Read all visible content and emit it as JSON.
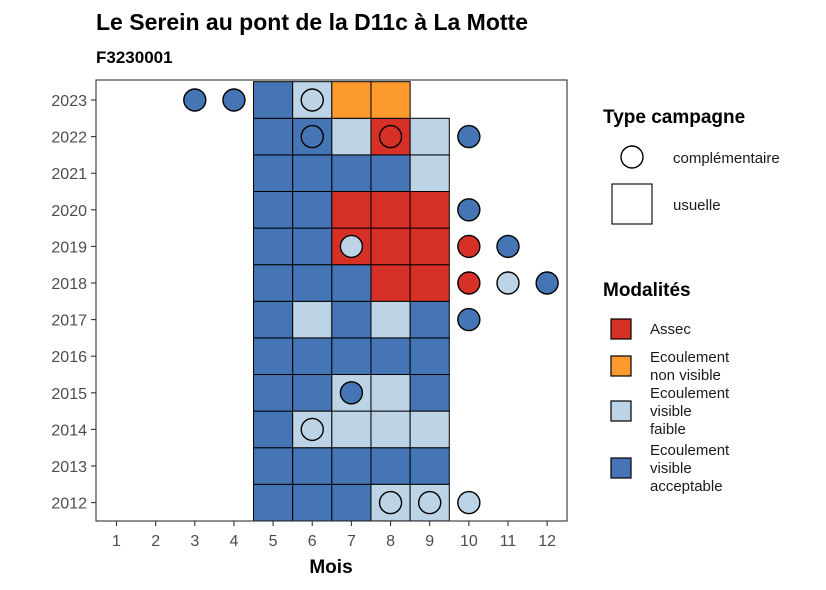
{
  "chart_data": {
    "type": "heatmap",
    "title": "Le Serein au pont de la D11c à La Motte",
    "subtitle": "F3230001",
    "xlabel": "Mois",
    "ylabel": "",
    "x_ticks": [
      1,
      2,
      3,
      4,
      5,
      6,
      7,
      8,
      9,
      10,
      11,
      12
    ],
    "y_ticks": [
      2012,
      2013,
      2014,
      2015,
      2016,
      2017,
      2018,
      2019,
      2020,
      2021,
      2022,
      2023
    ],
    "colors": {
      "Assec": "#d73027",
      "Ecoulement non visible": "#fd9a2e",
      "Ecoulement visible faible": "#bcd4e6",
      "Ecoulement visible acceptable": "#4575b4"
    },
    "legend_shape": {
      "title": "Type campagne",
      "items": [
        {
          "label": "complémentaire",
          "shape": "circle"
        },
        {
          "label": "usuelle",
          "shape": "square"
        }
      ]
    },
    "legend_fill": {
      "title": "Modalités",
      "items": [
        {
          "key": "Assec",
          "lines": [
            "Assec"
          ]
        },
        {
          "key": "Ecoulement non visible",
          "lines": [
            "Ecoulement",
            "non visible"
          ]
        },
        {
          "key": "Ecoulement visible faible",
          "lines": [
            "Ecoulement",
            "visible",
            "faible"
          ]
        },
        {
          "key": "Ecoulement visible acceptable",
          "lines": [
            "Ecoulement",
            "visible",
            "acceptable"
          ]
        }
      ]
    },
    "usuelle": [
      {
        "year": 2012,
        "month": 5,
        "modalite": "Ecoulement visible acceptable"
      },
      {
        "year": 2012,
        "month": 6,
        "modalite": "Ecoulement visible acceptable"
      },
      {
        "year": 2012,
        "month": 7,
        "modalite": "Ecoulement visible acceptable"
      },
      {
        "year": 2012,
        "month": 8,
        "modalite": "Ecoulement visible faible"
      },
      {
        "year": 2012,
        "month": 9,
        "modalite": "Ecoulement visible faible"
      },
      {
        "year": 2013,
        "month": 5,
        "modalite": "Ecoulement visible acceptable"
      },
      {
        "year": 2013,
        "month": 6,
        "modalite": "Ecoulement visible acceptable"
      },
      {
        "year": 2013,
        "month": 7,
        "modalite": "Ecoulement visible acceptable"
      },
      {
        "year": 2013,
        "month": 8,
        "modalite": "Ecoulement visible acceptable"
      },
      {
        "year": 2013,
        "month": 9,
        "modalite": "Ecoulement visible acceptable"
      },
      {
        "year": 2014,
        "month": 5,
        "modalite": "Ecoulement visible acceptable"
      },
      {
        "year": 2014,
        "month": 6,
        "modalite": "Ecoulement visible faible"
      },
      {
        "year": 2014,
        "month": 7,
        "modalite": "Ecoulement visible faible"
      },
      {
        "year": 2014,
        "month": 8,
        "modalite": "Ecoulement visible faible"
      },
      {
        "year": 2014,
        "month": 9,
        "modalite": "Ecoulement visible faible"
      },
      {
        "year": 2015,
        "month": 5,
        "modalite": "Ecoulement visible acceptable"
      },
      {
        "year": 2015,
        "month": 6,
        "modalite": "Ecoulement visible acceptable"
      },
      {
        "year": 2015,
        "month": 7,
        "modalite": "Ecoulement visible faible"
      },
      {
        "year": 2015,
        "month": 8,
        "modalite": "Ecoulement visible faible"
      },
      {
        "year": 2015,
        "month": 9,
        "modalite": "Ecoulement visible acceptable"
      },
      {
        "year": 2016,
        "month": 5,
        "modalite": "Ecoulement visible acceptable"
      },
      {
        "year": 2016,
        "month": 6,
        "modalite": "Ecoulement visible acceptable"
      },
      {
        "year": 2016,
        "month": 7,
        "modalite": "Ecoulement visible acceptable"
      },
      {
        "year": 2016,
        "month": 8,
        "modalite": "Ecoulement visible acceptable"
      },
      {
        "year": 2016,
        "month": 9,
        "modalite": "Ecoulement visible acceptable"
      },
      {
        "year": 2017,
        "month": 5,
        "modalite": "Ecoulement visible acceptable"
      },
      {
        "year": 2017,
        "month": 6,
        "modalite": "Ecoulement visible faible"
      },
      {
        "year": 2017,
        "month": 7,
        "modalite": "Ecoulement visible acceptable"
      },
      {
        "year": 2017,
        "month": 8,
        "modalite": "Ecoulement visible faible"
      },
      {
        "year": 2017,
        "month": 9,
        "modalite": "Ecoulement visible acceptable"
      },
      {
        "year": 2018,
        "month": 5,
        "modalite": "Ecoulement visible acceptable"
      },
      {
        "year": 2018,
        "month": 6,
        "modalite": "Ecoulement visible acceptable"
      },
      {
        "year": 2018,
        "month": 7,
        "modalite": "Ecoulement visible acceptable"
      },
      {
        "year": 2018,
        "month": 8,
        "modalite": "Assec"
      },
      {
        "year": 2018,
        "month": 9,
        "modalite": "Assec"
      },
      {
        "year": 2019,
        "month": 5,
        "modalite": "Ecoulement visible acceptable"
      },
      {
        "year": 2019,
        "month": 6,
        "modalite": "Ecoulement visible acceptable"
      },
      {
        "year": 2019,
        "month": 7,
        "modalite": "Assec"
      },
      {
        "year": 2019,
        "month": 8,
        "modalite": "Assec"
      },
      {
        "year": 2019,
        "month": 9,
        "modalite": "Assec"
      },
      {
        "year": 2020,
        "month": 5,
        "modalite": "Ecoulement visible acceptable"
      },
      {
        "year": 2020,
        "month": 6,
        "modalite": "Ecoulement visible acceptable"
      },
      {
        "year": 2020,
        "month": 7,
        "modalite": "Assec"
      },
      {
        "year": 2020,
        "month": 8,
        "modalite": "Assec"
      },
      {
        "year": 2020,
        "month": 9,
        "modalite": "Assec"
      },
      {
        "year": 2021,
        "month": 5,
        "modalite": "Ecoulement visible acceptable"
      },
      {
        "year": 2021,
        "month": 6,
        "modalite": "Ecoulement visible acceptable"
      },
      {
        "year": 2021,
        "month": 7,
        "modalite": "Ecoulement visible acceptable"
      },
      {
        "year": 2021,
        "month": 8,
        "modalite": "Ecoulement visible acceptable"
      },
      {
        "year": 2021,
        "month": 9,
        "modalite": "Ecoulement visible faible"
      },
      {
        "year": 2022,
        "month": 5,
        "modalite": "Ecoulement visible acceptable"
      },
      {
        "year": 2022,
        "month": 6,
        "modalite": "Ecoulement visible acceptable"
      },
      {
        "year": 2022,
        "month": 7,
        "modalite": "Ecoulement visible faible"
      },
      {
        "year": 2022,
        "month": 8,
        "modalite": "Assec"
      },
      {
        "year": 2022,
        "month": 9,
        "modalite": "Ecoulement visible faible"
      },
      {
        "year": 2023,
        "month": 5,
        "modalite": "Ecoulement visible acceptable"
      },
      {
        "year": 2023,
        "month": 6,
        "modalite": "Ecoulement visible faible"
      },
      {
        "year": 2023,
        "month": 7,
        "modalite": "Ecoulement non visible"
      },
      {
        "year": 2023,
        "month": 8,
        "modalite": "Ecoulement non visible"
      }
    ],
    "complementaire": [
      {
        "year": 2012,
        "month": 8,
        "modalite": "Ecoulement visible faible"
      },
      {
        "year": 2012,
        "month": 9,
        "modalite": "Ecoulement visible faible"
      },
      {
        "year": 2012,
        "month": 10,
        "modalite": "Ecoulement visible faible"
      },
      {
        "year": 2014,
        "month": 6,
        "modalite": "Ecoulement visible faible"
      },
      {
        "year": 2015,
        "month": 7,
        "modalite": "Ecoulement visible acceptable"
      },
      {
        "year": 2017,
        "month": 10,
        "modalite": "Ecoulement visible acceptable"
      },
      {
        "year": 2018,
        "month": 10,
        "modalite": "Assec"
      },
      {
        "year": 2018,
        "month": 11,
        "modalite": "Ecoulement visible faible"
      },
      {
        "year": 2018,
        "month": 12,
        "modalite": "Ecoulement visible acceptable"
      },
      {
        "year": 2019,
        "month": 7,
        "modalite": "Ecoulement visible faible"
      },
      {
        "year": 2019,
        "month": 10,
        "modalite": "Assec"
      },
      {
        "year": 2019,
        "month": 11,
        "modalite": "Ecoulement visible acceptable"
      },
      {
        "year": 2020,
        "month": 10,
        "modalite": "Ecoulement visible acceptable"
      },
      {
        "year": 2022,
        "month": 6,
        "modalite": "Ecoulement visible acceptable"
      },
      {
        "year": 2022,
        "month": 8,
        "modalite": "Assec"
      },
      {
        "year": 2022,
        "month": 10,
        "modalite": "Ecoulement visible acceptable"
      },
      {
        "year": 2023,
        "month": 3,
        "modalite": "Ecoulement visible acceptable"
      },
      {
        "year": 2023,
        "month": 4,
        "modalite": "Ecoulement visible acceptable"
      },
      {
        "year": 2023,
        "month": 6,
        "modalite": "Ecoulement visible faible"
      }
    ]
  }
}
